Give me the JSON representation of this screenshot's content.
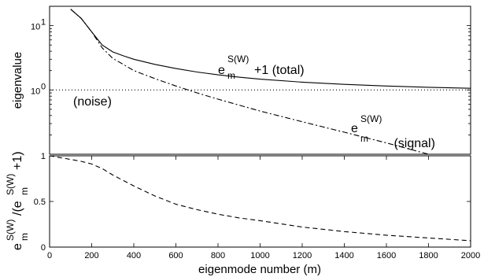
{
  "chart_data": [
    {
      "type": "line",
      "yscale": "log",
      "xlim": [
        0,
        2000
      ],
      "ylim": [
        0.1,
        20
      ],
      "ylabel": "eigenvalue",
      "y_tick_labels": [
        {
          "value": 10,
          "base": "10",
          "exp": "1"
        },
        {
          "value": 1,
          "base": "10",
          "exp": "0"
        }
      ],
      "annotations": {
        "total": {
          "base": "e",
          "sub": "m",
          "sup": "S(W)",
          "rest": "+1 (total)"
        },
        "signal": {
          "base": "e",
          "sub": "m",
          "sup": "S(W)",
          "rest": " (signal)"
        },
        "noise": "(noise)"
      },
      "series": [
        {
          "key": "total",
          "style": "solid",
          "x": [
            100,
            150,
            200,
            250,
            300,
            350,
            400,
            500,
            600,
            700,
            800,
            900,
            1000,
            1200,
            1400,
            1600,
            1800,
            2000
          ],
          "y": [
            18.0,
            13.0,
            8.0,
            5.0,
            3.9,
            3.4,
            3.0,
            2.5,
            2.15,
            1.9,
            1.72,
            1.58,
            1.47,
            1.32,
            1.22,
            1.15,
            1.1,
            1.06
          ]
        },
        {
          "key": "signal",
          "style": "dashdot",
          "x": [
            100,
            150,
            200,
            250,
            300,
            350,
            400,
            500,
            600,
            700,
            800,
            900,
            1000,
            1200,
            1400,
            1600,
            1800,
            2000
          ],
          "y": [
            18.0,
            13.0,
            8.0,
            4.5,
            3.1,
            2.5,
            2.0,
            1.5,
            1.15,
            0.9,
            0.72,
            0.58,
            0.47,
            0.32,
            0.22,
            0.15,
            0.1,
            0.07
          ]
        },
        {
          "key": "noise",
          "style": "dotted",
          "x": [
            0,
            2000
          ],
          "y": [
            1,
            1
          ]
        }
      ]
    },
    {
      "type": "line",
      "xlim": [
        0,
        2000
      ],
      "ylim": [
        0,
        1
      ],
      "xlabel": "eigenmode number (m)",
      "ylabel": {
        "base": "e",
        "sub": "m",
        "sup": "S(W)",
        "mid": "/(e",
        "sub2": "m",
        "sup2": "S(W)",
        "end": "+1)"
      },
      "x_ticks": [
        0,
        200,
        400,
        600,
        800,
        1000,
        1200,
        1400,
        1600,
        1800,
        2000
      ],
      "y_ticks": [
        0,
        0.5,
        1
      ],
      "y_tick_labels": [
        "0",
        "0.5",
        "1"
      ],
      "series": [
        {
          "key": "ratio",
          "style": "dashed",
          "x": [
            0,
            50,
            100,
            150,
            200,
            250,
            300,
            400,
            500,
            600,
            700,
            800,
            900,
            1000,
            1200,
            1400,
            1600,
            1800,
            2000
          ],
          "y": [
            1.0,
            0.98,
            0.96,
            0.94,
            0.91,
            0.86,
            0.79,
            0.67,
            0.56,
            0.47,
            0.41,
            0.36,
            0.32,
            0.29,
            0.22,
            0.17,
            0.13,
            0.1,
            0.07
          ]
        }
      ]
    }
  ]
}
